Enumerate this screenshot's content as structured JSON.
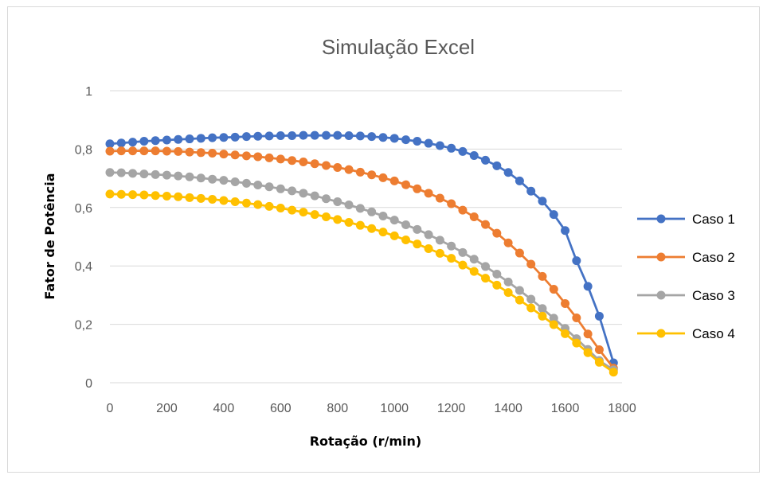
{
  "chart_data": {
    "type": "line",
    "title": "Simulação Excel",
    "xlabel": "Rotação (r/min)",
    "ylabel": "Fator de Potência",
    "xlim": [
      0,
      1800
    ],
    "ylim": [
      0,
      1
    ],
    "xticks": [
      "0",
      "200",
      "400",
      "600",
      "800",
      "1000",
      "1200",
      "1400",
      "1600",
      "1800"
    ],
    "yticks": [
      "0",
      "0,2",
      "0,4",
      "0,6",
      "0,8",
      "1"
    ],
    "grid": "horizontal",
    "legend_position": "right",
    "x": [
      0,
      40,
      80,
      120,
      160,
      200,
      240,
      280,
      320,
      360,
      400,
      440,
      480,
      520,
      560,
      600,
      640,
      680,
      720,
      760,
      800,
      840,
      880,
      920,
      960,
      1000,
      1040,
      1080,
      1120,
      1160,
      1200,
      1240,
      1280,
      1320,
      1360,
      1400,
      1440,
      1480,
      1520,
      1560,
      1600,
      1640,
      1680,
      1720,
      1770
    ],
    "series": [
      {
        "name": "Caso 1",
        "color": "#4472C4",
        "values": [
          0.818,
          0.821,
          0.824,
          0.827,
          0.829,
          0.831,
          0.833,
          0.835,
          0.837,
          0.839,
          0.84,
          0.841,
          0.843,
          0.844,
          0.845,
          0.846,
          0.846,
          0.847,
          0.847,
          0.847,
          0.847,
          0.846,
          0.845,
          0.843,
          0.84,
          0.837,
          0.832,
          0.827,
          0.82,
          0.812,
          0.803,
          0.792,
          0.778,
          0.762,
          0.743,
          0.72,
          0.691,
          0.656,
          0.622,
          0.576,
          0.521,
          0.418,
          0.33,
          0.228,
          0.068
        ]
      },
      {
        "name": "Caso 2",
        "color": "#ED7D31",
        "values": [
          0.793,
          0.794,
          0.794,
          0.794,
          0.794,
          0.793,
          0.792,
          0.79,
          0.788,
          0.786,
          0.783,
          0.78,
          0.777,
          0.774,
          0.77,
          0.766,
          0.761,
          0.756,
          0.75,
          0.744,
          0.737,
          0.73,
          0.721,
          0.712,
          0.702,
          0.691,
          0.678,
          0.664,
          0.649,
          0.632,
          0.613,
          0.591,
          0.568,
          0.542,
          0.512,
          0.479,
          0.444,
          0.406,
          0.364,
          0.32,
          0.271,
          0.222,
          0.167,
          0.113,
          0.05
        ]
      },
      {
        "name": "Caso 3",
        "color": "#A5A5A5",
        "values": [
          0.72,
          0.719,
          0.717,
          0.715,
          0.713,
          0.711,
          0.708,
          0.705,
          0.701,
          0.697,
          0.693,
          0.688,
          0.683,
          0.677,
          0.671,
          0.664,
          0.657,
          0.649,
          0.64,
          0.63,
          0.62,
          0.609,
          0.597,
          0.585,
          0.571,
          0.557,
          0.541,
          0.525,
          0.507,
          0.488,
          0.468,
          0.446,
          0.423,
          0.398,
          0.372,
          0.345,
          0.316,
          0.286,
          0.254,
          0.221,
          0.186,
          0.151,
          0.114,
          0.076,
          0.044
        ]
      },
      {
        "name": "Caso 4",
        "color": "#FFC000",
        "values": [
          0.646,
          0.645,
          0.644,
          0.643,
          0.641,
          0.639,
          0.637,
          0.634,
          0.631,
          0.628,
          0.624,
          0.62,
          0.615,
          0.61,
          0.604,
          0.598,
          0.591,
          0.584,
          0.576,
          0.568,
          0.559,
          0.549,
          0.539,
          0.528,
          0.516,
          0.503,
          0.489,
          0.475,
          0.459,
          0.443,
          0.426,
          0.403,
          0.381,
          0.358,
          0.334,
          0.309,
          0.283,
          0.256,
          0.228,
          0.199,
          0.168,
          0.136,
          0.103,
          0.07,
          0.036
        ]
      }
    ]
  }
}
